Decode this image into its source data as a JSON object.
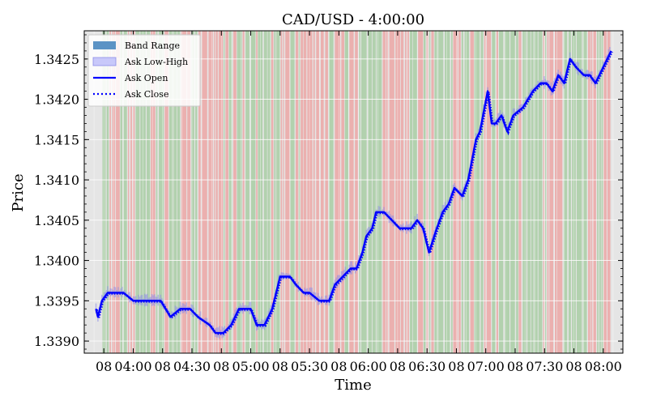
{
  "chart_data": {
    "type": "line",
    "title": "CAD/USD - 4:00:00",
    "xlabel": "Time",
    "ylabel": "Price",
    "x_range": [
      "03:35",
      "08:10"
    ],
    "ylim": [
      1.33885,
      1.34285
    ],
    "y_ticks": [
      {
        "value": 1.339,
        "label": "1.3390"
      },
      {
        "value": 1.3395,
        "label": "1.3395"
      },
      {
        "value": 1.34,
        "label": "1.3400"
      },
      {
        "value": 1.3405,
        "label": "1.3405"
      },
      {
        "value": 1.341,
        "label": "1.3410"
      },
      {
        "value": 1.3415,
        "label": "1.3415"
      },
      {
        "value": 1.342,
        "label": "1.3420"
      },
      {
        "value": 1.3425,
        "label": "1.3425"
      }
    ],
    "x_ticks": [
      {
        "time": "03:45",
        "label": "08"
      },
      {
        "time": "04:00",
        "label": "04:00"
      },
      {
        "time": "04:15",
        "label": "08"
      },
      {
        "time": "04:30",
        "label": "04:30"
      },
      {
        "time": "04:45",
        "label": "08"
      },
      {
        "time": "05:00",
        "label": "05:00"
      },
      {
        "time": "05:15",
        "label": "08"
      },
      {
        "time": "05:30",
        "label": "05:30"
      },
      {
        "time": "05:45",
        "label": "08"
      },
      {
        "time": "06:00",
        "label": "06:00"
      },
      {
        "time": "06:15",
        "label": "08"
      },
      {
        "time": "06:30",
        "label": "06:30"
      },
      {
        "time": "06:45",
        "label": "08"
      },
      {
        "time": "07:00",
        "label": "07:00"
      },
      {
        "time": "07:15",
        "label": "08"
      },
      {
        "time": "07:30",
        "label": "07:30"
      },
      {
        "time": "07:45",
        "label": "08"
      },
      {
        "time": "08:00",
        "label": "08:00"
      }
    ],
    "grid": true,
    "legend_position": "top-left",
    "legend": [
      {
        "label": "Band Range",
        "kind": "patch",
        "color": "#5b93c5"
      },
      {
        "label": "Ask Low-High",
        "kind": "patch",
        "color": "#c8c8fa"
      },
      {
        "label": "Ask Open",
        "kind": "solid-line",
        "color": "#0000ff"
      },
      {
        "label": "Ask Close",
        "kind": "dotted-line",
        "color": "#0000ff"
      }
    ],
    "colors": {
      "background": "#e5e5e5",
      "up_band": "#a9cea5",
      "down_band": "#eca7a6",
      "line": "#0000ff",
      "range": "#c8c8fa"
    },
    "series": [
      {
        "name": "Ask Open",
        "x": [
          "03:41",
          "03:42",
          "03:44",
          "03:47",
          "03:51",
          "03:55",
          "04:00",
          "04:04",
          "04:09",
          "04:14",
          "04:19",
          "04:24",
          "04:29",
          "04:33",
          "04:39",
          "04:42",
          "04:46",
          "04:50",
          "04:54",
          "04:56",
          "05:00",
          "05:03",
          "05:07",
          "05:11",
          "05:15",
          "05:20",
          "05:23",
          "05:27",
          "05:30",
          "05:35",
          "05:40",
          "05:43",
          "05:47",
          "05:51",
          "05:54",
          "05:57",
          "05:59",
          "06:02",
          "06:04",
          "06:08",
          "06:12",
          "06:16",
          "06:19",
          "06:22",
          "06:25",
          "06:28",
          "06:31",
          "06:35",
          "06:38",
          "06:41",
          "06:44",
          "06:48",
          "06:51",
          "06:55",
          "06:57",
          "07:01",
          "07:03",
          "07:05",
          "07:08",
          "07:11",
          "07:14",
          "07:19",
          "07:24",
          "07:28",
          "07:31",
          "07:34",
          "07:37",
          "07:40",
          "07:43",
          "07:46",
          "07:50",
          "07:53",
          "07:56",
          "08:02",
          "08:04"
        ],
        "y": [
          1.3394,
          1.3393,
          1.3395,
          1.3396,
          1.3396,
          1.3396,
          1.3395,
          1.3395,
          1.3395,
          1.3395,
          1.3393,
          1.3394,
          1.3394,
          1.3393,
          1.3392,
          1.3391,
          1.3391,
          1.3392,
          1.3394,
          1.3394,
          1.3394,
          1.3392,
          1.3392,
          1.3394,
          1.3398,
          1.3398,
          1.3397,
          1.3396,
          1.3396,
          1.3395,
          1.3395,
          1.3397,
          1.3398,
          1.3399,
          1.3399,
          1.3401,
          1.3403,
          1.3404,
          1.3406,
          1.3406,
          1.3405,
          1.3404,
          1.3404,
          1.3404,
          1.3405,
          1.3404,
          1.3401,
          1.3404,
          1.3406,
          1.3407,
          1.3409,
          1.3408,
          1.341,
          1.3415,
          1.3416,
          1.3421,
          1.3417,
          1.3417,
          1.3418,
          1.3416,
          1.3418,
          1.3419,
          1.3421,
          1.3422,
          1.3422,
          1.3421,
          1.3423,
          1.3422,
          1.3425,
          1.3424,
          1.3423,
          1.3423,
          1.3422,
          1.3425,
          1.3426
        ]
      }
    ]
  }
}
